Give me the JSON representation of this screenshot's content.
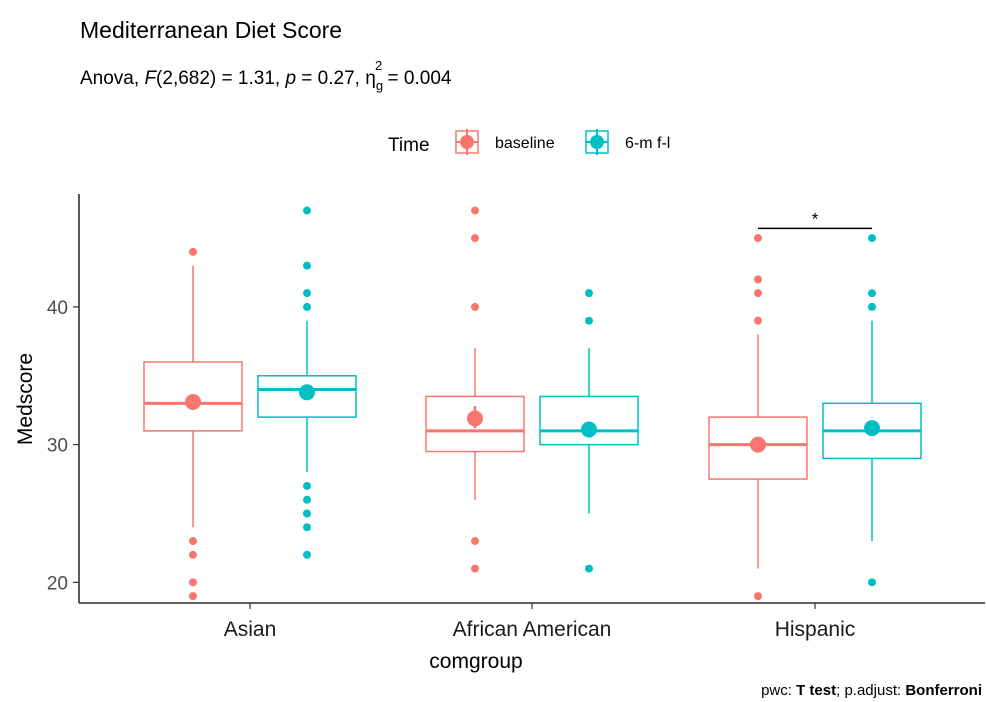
{
  "chart_data": {
    "type": "boxplot",
    "title": "Mediterranean Diet Score",
    "subtitle": {
      "prefix": "Anova, ",
      "F_label": "F",
      "F_value": "(2,682) = 1.31, ",
      "p_label": "p",
      "p_value": " = 0.27, ",
      "eta": "η",
      "eta_sub": "g",
      "eta_sup": "2",
      "eta_value": " = 0.004"
    },
    "xlabel": "comgroup",
    "ylabel": "Medscore",
    "ylim": [
      18.5,
      48.2
    ],
    "yticks": [
      20,
      30,
      40
    ],
    "categories": [
      "Asian",
      "African American",
      "Hispanic"
    ],
    "legend": {
      "title": "Time",
      "position": "top",
      "entries": [
        "baseline",
        "6-m f-l"
      ]
    },
    "series": [
      {
        "name": "baseline",
        "color": "#F8766D",
        "boxes": [
          {
            "q1": 31,
            "median": 33,
            "q3": 36,
            "lower_whisker": 24,
            "upper_whisker": 43,
            "mean": 33.1,
            "mean_lo": 32.7,
            "mean_hi": 33.5,
            "outliers": [
              19,
              20,
              22,
              23,
              44
            ]
          },
          {
            "q1": 29.5,
            "median": 31,
            "q3": 33.5,
            "lower_whisker": 26,
            "upper_whisker": 37,
            "mean": 31.9,
            "mean_lo": 31.2,
            "mean_hi": 32.8,
            "outliers": [
              21,
              23,
              40,
              45,
              47
            ]
          },
          {
            "q1": 27.5,
            "median": 30,
            "q3": 32,
            "lower_whisker": 21,
            "upper_whisker": 38,
            "mean": 30.0,
            "mean_lo": 29.6,
            "mean_hi": 30.4,
            "outliers": [
              19,
              39,
              41,
              42,
              45
            ]
          }
        ]
      },
      {
        "name": "6-m f-l",
        "color": "#00BFC4",
        "boxes": [
          {
            "q1": 32,
            "median": 34,
            "q3": 35,
            "lower_whisker": 28,
            "upper_whisker": 39,
            "mean": 33.8,
            "mean_lo": 33.4,
            "mean_hi": 34.2,
            "outliers": [
              22,
              24,
              25,
              26,
              27,
              40,
              41,
              43,
              47
            ]
          },
          {
            "q1": 30,
            "median": 31,
            "q3": 33.5,
            "lower_whisker": 25,
            "upper_whisker": 37,
            "mean": 31.1,
            "mean_lo": 30.6,
            "mean_hi": 31.6,
            "outliers": [
              21,
              39,
              41
            ]
          },
          {
            "q1": 29,
            "median": 31,
            "q3": 33,
            "lower_whisker": 23,
            "upper_whisker": 39,
            "mean": 31.2,
            "mean_lo": 30.8,
            "mean_hi": 31.6,
            "outliers": [
              20,
              40,
              41,
              45
            ]
          }
        ]
      }
    ],
    "significance": [
      {
        "category": "Hispanic",
        "label": "*",
        "y": 45.7
      }
    ],
    "caption": {
      "prefix": "pwc: ",
      "test": "T test",
      "middle": "; p.adjust: ",
      "method": "Bonferroni"
    }
  }
}
